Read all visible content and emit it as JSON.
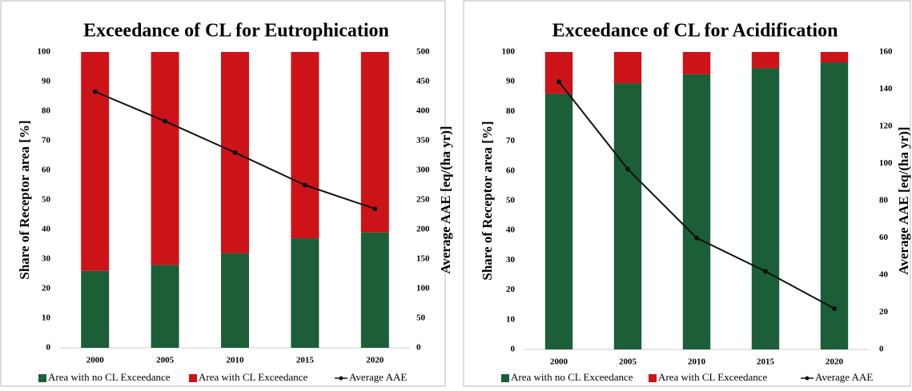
{
  "chart_data": [
    {
      "type": "bar",
      "stacked": true,
      "title": "Exceedance of CL for Eutrophication",
      "ylabel": "Share of Receptor area [%]",
      "y2label": "Average AAE [eq/(ha yr)]",
      "categories": [
        "2000",
        "2005",
        "2010",
        "2015",
        "2020"
      ],
      "series": [
        {
          "name": "Area with no CL Exceedance",
          "color": "#1b5e38",
          "values": [
            26,
            28,
            32,
            37,
            39
          ]
        },
        {
          "name": "Area with CL Exceedance",
          "color": "#cc1418",
          "values": [
            74,
            72,
            68,
            63,
            61
          ]
        },
        {
          "name": "Average AAE",
          "type": "line",
          "axis": "y2",
          "color": "#111111",
          "values": [
            433,
            383,
            330,
            275,
            235
          ]
        }
      ],
      "ylim": [
        0,
        100
      ],
      "yticks": [
        0,
        10,
        20,
        30,
        40,
        50,
        60,
        70,
        80,
        90,
        100
      ],
      "y2lim": [
        0,
        500
      ],
      "y2ticks": [
        0,
        50,
        100,
        150,
        200,
        250,
        300,
        350,
        400,
        450,
        500
      ]
    },
    {
      "type": "bar",
      "stacked": true,
      "title": "Exceedance of CL for Acidification",
      "ylabel": "Share of Receptor area [%]",
      "y2label": "Average AAE [eq/(ha yr)]",
      "categories": [
        "2000",
        "2005",
        "2010",
        "2015",
        "2020"
      ],
      "series": [
        {
          "name": "Area with no CL Exceedance",
          "color": "#1b5e38",
          "values": [
            86,
            89.5,
            92.5,
            94.5,
            96.5
          ]
        },
        {
          "name": "Area with CL Exceedance",
          "color": "#cc1418",
          "values": [
            14,
            10.5,
            7.5,
            5.5,
            3.5
          ]
        },
        {
          "name": "Average AAE",
          "type": "line",
          "axis": "y2",
          "color": "#111111",
          "values": [
            144,
            97,
            60,
            42,
            22
          ]
        }
      ],
      "ylim": [
        0,
        100
      ],
      "yticks": [
        0,
        10,
        20,
        30,
        40,
        50,
        60,
        70,
        80,
        90,
        100
      ],
      "y2lim": [
        0,
        160
      ],
      "y2ticks": [
        0,
        20,
        40,
        60,
        80,
        100,
        120,
        140,
        160
      ]
    }
  ]
}
